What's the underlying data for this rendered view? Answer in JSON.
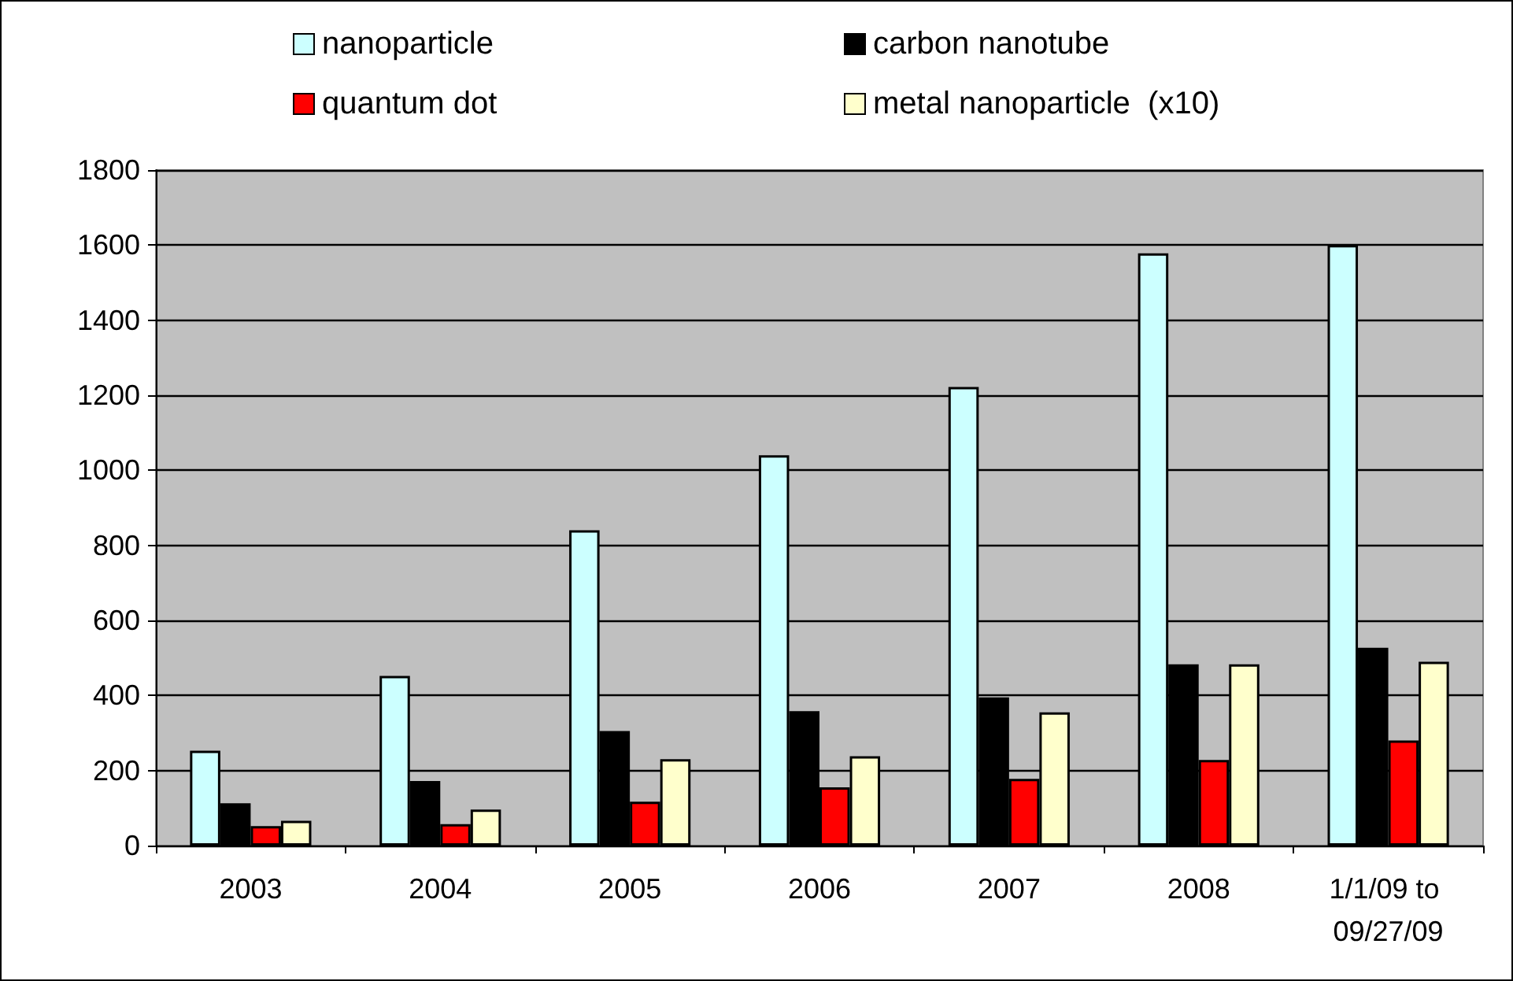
{
  "chart_data": {
    "type": "bar",
    "categories": [
      "2003",
      "2004",
      "2005",
      "2006",
      "2007",
      "2008",
      "1/1/09 to 09/27/09"
    ],
    "series": [
      {
        "name": "nanoparticle",
        "color": "#ccffff",
        "values": [
          253,
          452,
          840,
          1040,
          1222,
          1578,
          1600
        ]
      },
      {
        "name": "carbon nanotube",
        "color": "#000000",
        "values": [
          113,
          172,
          305,
          358,
          395,
          483,
          527
        ]
      },
      {
        "name": "quantum dot",
        "color": "#ff0000",
        "values": [
          52,
          57,
          117,
          155,
          178,
          228,
          280
        ]
      },
      {
        "name": "metal nanoparticle  (x10)",
        "color": "#ffffcc",
        "values": [
          66,
          96,
          230,
          238,
          355,
          483,
          490
        ]
      }
    ],
    "ylim": [
      0,
      1800
    ],
    "yticks": [
      0,
      200,
      400,
      600,
      800,
      1000,
      1200,
      1400,
      1600,
      1800
    ],
    "grid": "y",
    "legend": "top"
  }
}
